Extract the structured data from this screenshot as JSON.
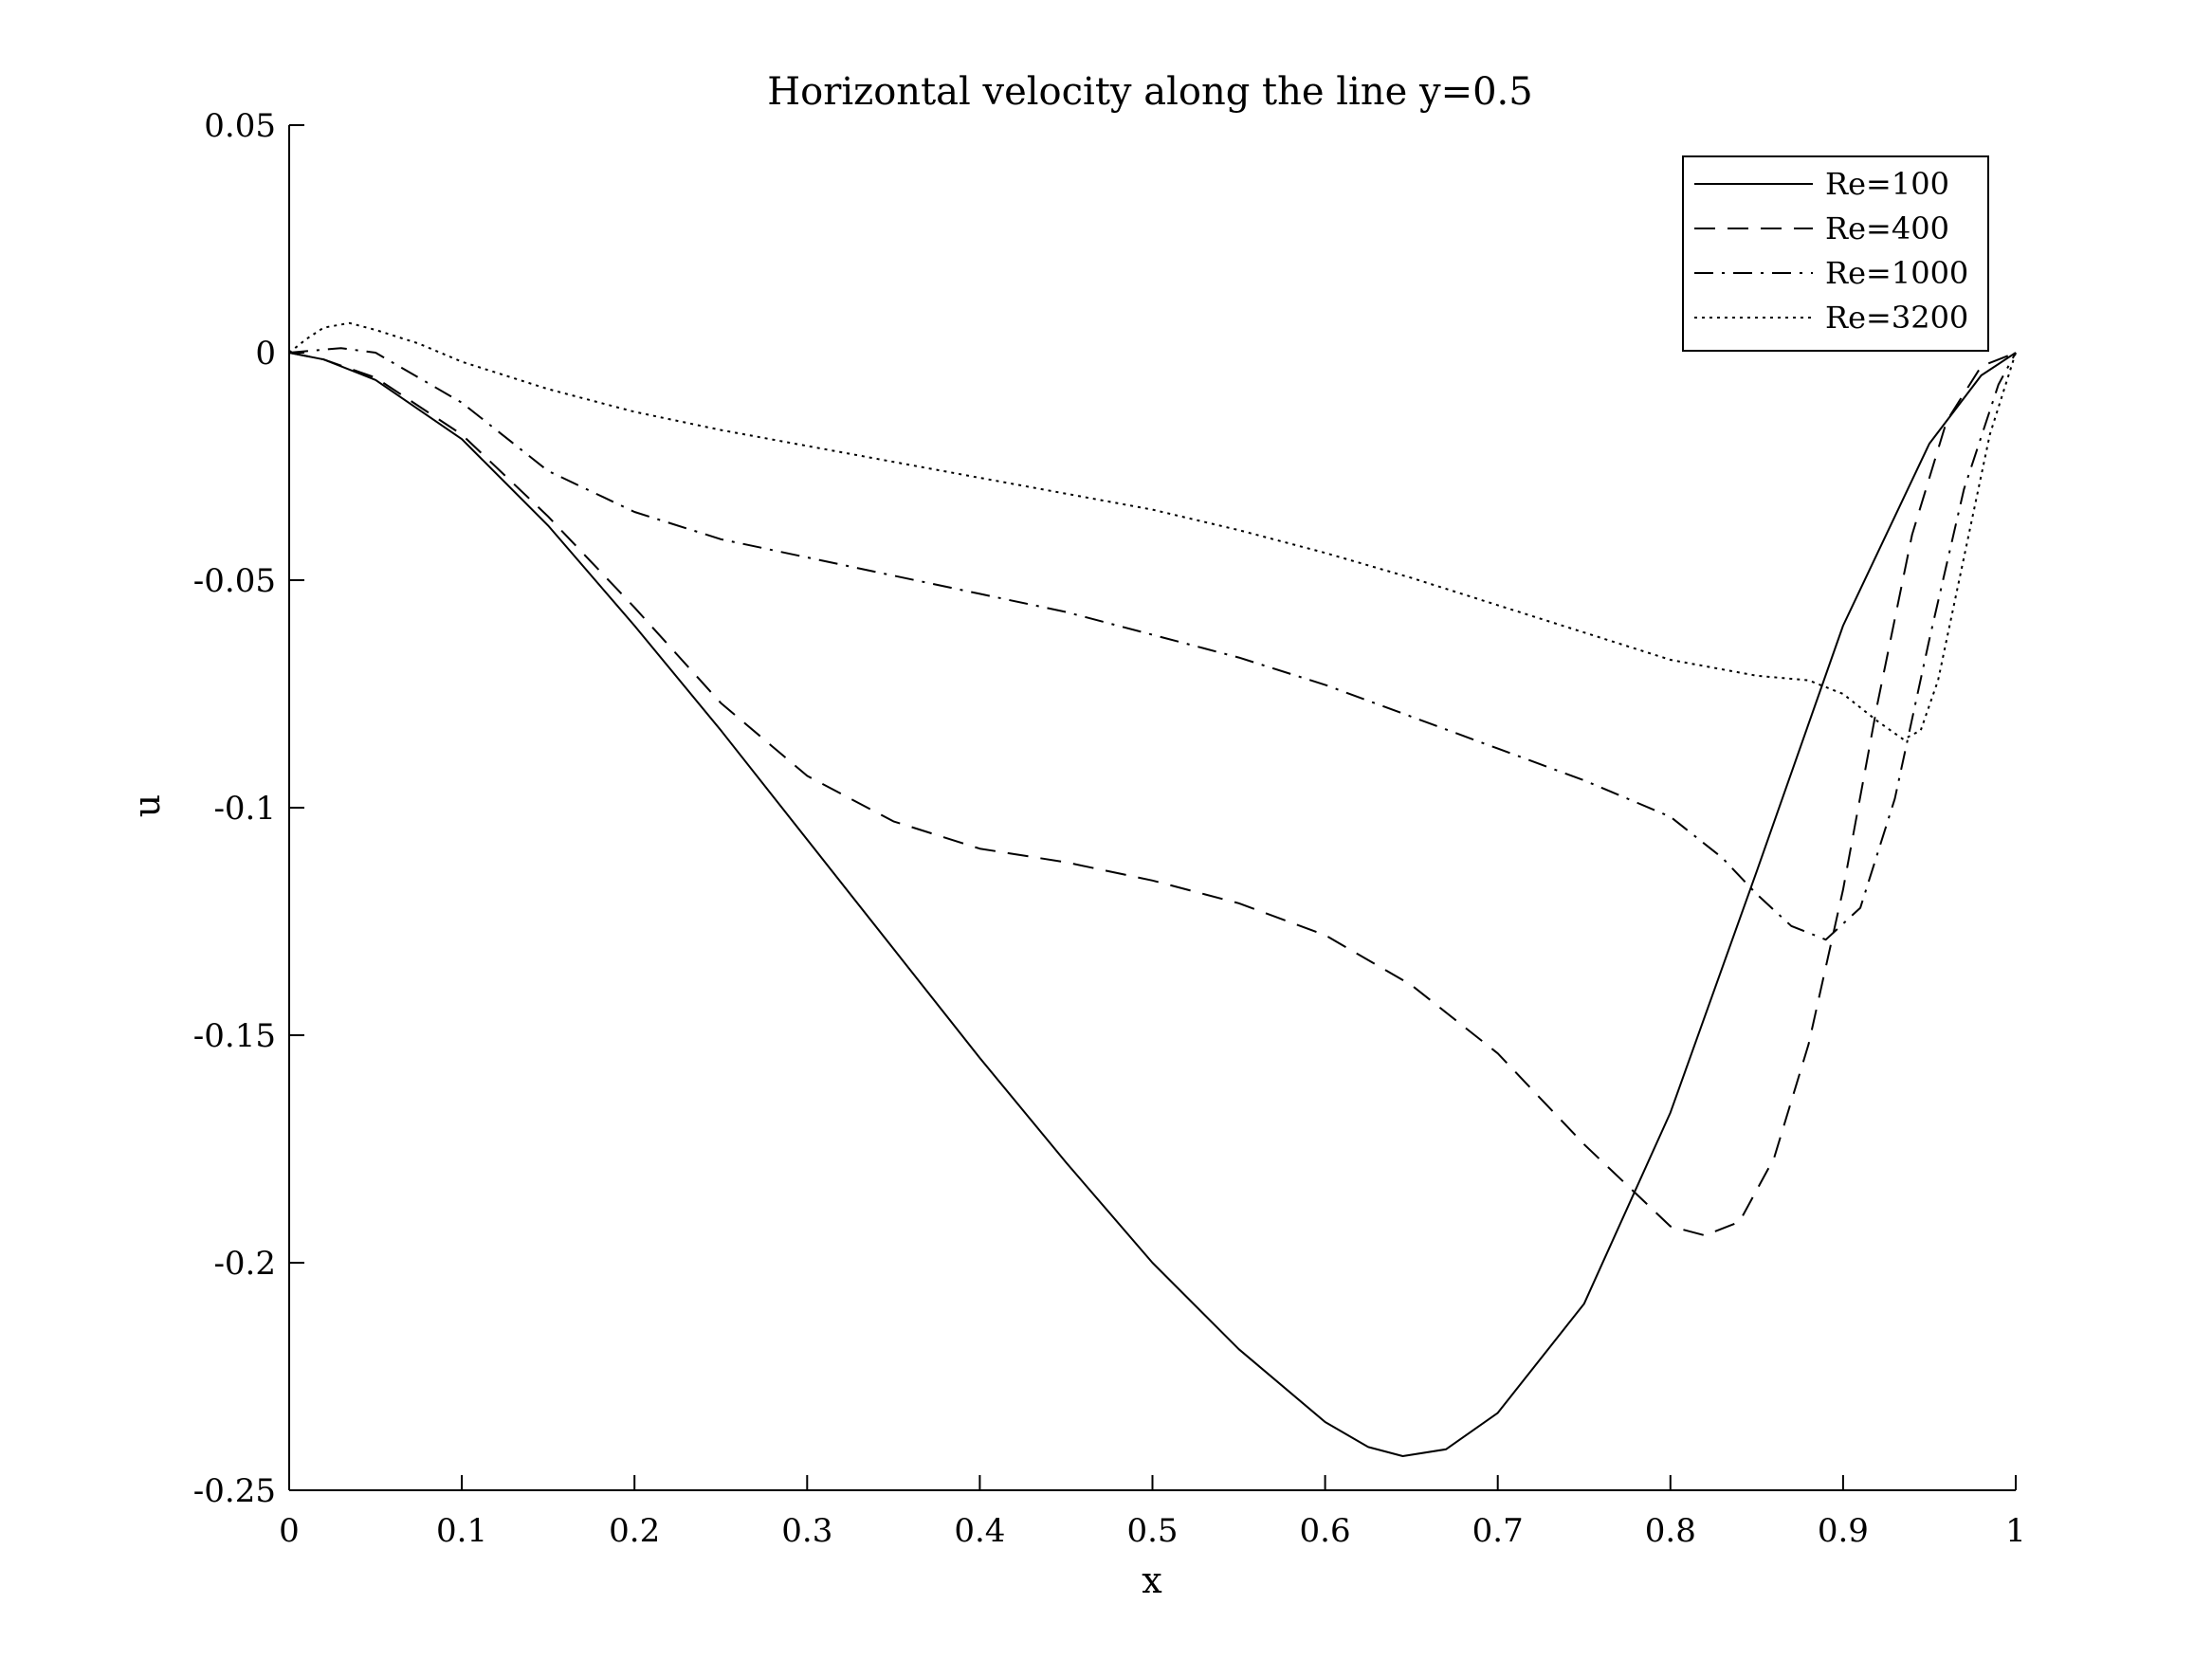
{
  "chart_data": {
    "type": "line",
    "title": "Horizontal velocity along the line y=0.5",
    "xlabel": "x",
    "ylabel": "u",
    "xlim": [
      0,
      1
    ],
    "ylim": [
      -0.25,
      0.05
    ],
    "xticks": [
      0,
      0.1,
      0.2,
      0.3,
      0.4,
      0.5,
      0.6,
      0.7,
      0.8,
      0.9,
      1
    ],
    "xtick_labels": [
      "0",
      "0.1",
      "0.2",
      "0.3",
      "0.4",
      "0.5",
      "0.6",
      "0.7",
      "0.8",
      "0.9",
      "1"
    ],
    "yticks": [
      0.05,
      0,
      -0.05,
      -0.1,
      -0.15,
      -0.2,
      -0.25
    ],
    "ytick_labels": [
      "0.05",
      "0",
      "-0.05",
      "-0.1",
      "-0.15",
      "-0.2",
      "-0.25"
    ],
    "grid": false,
    "legend_position": "top-right",
    "series": [
      {
        "name": "Re=100",
        "style": "solid",
        "color": "#000000",
        "x": [
          0,
          0.02,
          0.05,
          0.1,
          0.15,
          0.2,
          0.25,
          0.3,
          0.35,
          0.4,
          0.45,
          0.5,
          0.55,
          0.6,
          0.625,
          0.645,
          0.67,
          0.7,
          0.75,
          0.8,
          0.85,
          0.9,
          0.95,
          0.98,
          1
        ],
        "y": [
          0,
          -0.0015,
          -0.006,
          -0.019,
          -0.038,
          -0.06,
          -0.083,
          -0.107,
          -0.131,
          -0.155,
          -0.178,
          -0.2,
          -0.219,
          -0.235,
          -0.2405,
          -0.2425,
          -0.241,
          -0.233,
          -0.209,
          -0.167,
          -0.114,
          -0.06,
          -0.02,
          -0.005,
          0
        ]
      },
      {
        "name": "Re=400",
        "style": "dashed",
        "color": "#000000",
        "x": [
          0,
          0.02,
          0.05,
          0.1,
          0.15,
          0.2,
          0.25,
          0.3,
          0.35,
          0.4,
          0.45,
          0.5,
          0.55,
          0.6,
          0.65,
          0.7,
          0.75,
          0.8,
          0.82,
          0.84,
          0.86,
          0.88,
          0.9,
          0.92,
          0.94,
          0.96,
          0.98,
          1
        ],
        "y": [
          0,
          -0.0015,
          -0.0055,
          -0.018,
          -0.036,
          -0.056,
          -0.077,
          -0.093,
          -0.103,
          -0.109,
          -0.112,
          -0.116,
          -0.121,
          -0.128,
          -0.139,
          -0.154,
          -0.174,
          -0.192,
          -0.194,
          -0.191,
          -0.177,
          -0.152,
          -0.118,
          -0.077,
          -0.04,
          -0.015,
          -0.003,
          0
        ]
      },
      {
        "name": "Re=1000",
        "style": "dashdot",
        "color": "#000000",
        "x": [
          0,
          0.015,
          0.03,
          0.05,
          0.1,
          0.15,
          0.2,
          0.25,
          0.3,
          0.35,
          0.4,
          0.45,
          0.5,
          0.55,
          0.6,
          0.65,
          0.7,
          0.75,
          0.8,
          0.83,
          0.85,
          0.87,
          0.89,
          0.91,
          0.93,
          0.95,
          0.97,
          0.99,
          1
        ],
        "y": [
          0,
          0.0005,
          0.001,
          0,
          -0.011,
          -0.026,
          -0.035,
          -0.041,
          -0.045,
          -0.049,
          -0.053,
          -0.057,
          -0.062,
          -0.067,
          -0.073,
          -0.08,
          -0.087,
          -0.094,
          -0.102,
          -0.111,
          -0.119,
          -0.126,
          -0.129,
          -0.122,
          -0.098,
          -0.063,
          -0.03,
          -0.007,
          0
        ]
      },
      {
        "name": "Re=3200",
        "style": "dotted",
        "color": "#000000",
        "x": [
          0,
          0.01,
          0.02,
          0.035,
          0.05,
          0.075,
          0.1,
          0.15,
          0.2,
          0.25,
          0.3,
          0.35,
          0.4,
          0.45,
          0.5,
          0.55,
          0.6,
          0.65,
          0.7,
          0.75,
          0.8,
          0.85,
          0.88,
          0.9,
          0.92,
          0.935,
          0.945,
          0.955,
          0.97,
          0.985,
          1
        ],
        "y": [
          0,
          0.003,
          0.0055,
          0.0065,
          0.005,
          0.002,
          -0.002,
          -0.008,
          -0.013,
          -0.017,
          -0.0205,
          -0.024,
          -0.0275,
          -0.031,
          -0.0345,
          -0.039,
          -0.044,
          -0.0495,
          -0.0555,
          -0.0615,
          -0.0675,
          -0.071,
          -0.072,
          -0.075,
          -0.081,
          -0.085,
          -0.083,
          -0.072,
          -0.045,
          -0.018,
          0
        ]
      }
    ]
  }
}
